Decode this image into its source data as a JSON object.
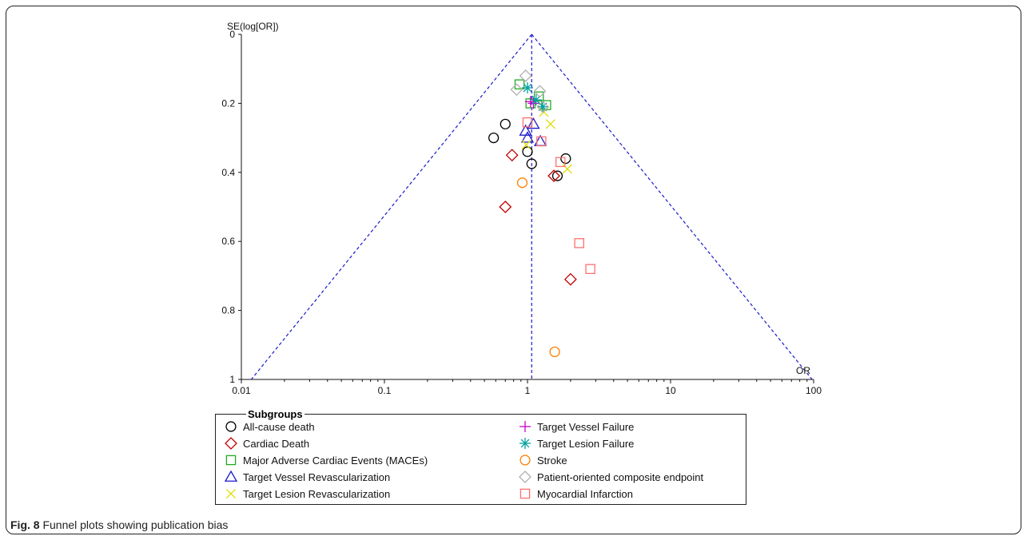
{
  "caption": {
    "label": "Fig. 8",
    "text": " Funnel plots showing publication bias"
  },
  "chart_data": {
    "type": "scatter",
    "title": "",
    "xlabel": "OR",
    "ylabel": "SE(log[OR])",
    "x_scale": "log",
    "xlim": [
      0.01,
      100
    ],
    "ylim": [
      0,
      1
    ],
    "y_inverted": true,
    "x_ticks": [
      0.01,
      0.1,
      1,
      10,
      100
    ],
    "x_tick_labels": [
      "0.01",
      "0.1",
      "1",
      "10",
      "100"
    ],
    "y_ticks": [
      0,
      0.2,
      0.4,
      0.6,
      0.8,
      1
    ],
    "y_tick_labels": [
      "0",
      "0.2",
      "0.4",
      "0.6",
      "0.8",
      "1"
    ],
    "pooled_or": 1.07,
    "funnel": {
      "style": "dashed",
      "color": "#1a1acc"
    },
    "legend": {
      "title": "Subgroups",
      "placement": "bottom"
    },
    "series": [
      {
        "name": "All-cause death",
        "marker": "circle",
        "color": "#000000",
        "points": [
          [
            0.58,
            0.3
          ],
          [
            0.7,
            0.26
          ],
          [
            1.0,
            0.34
          ],
          [
            1.07,
            0.375
          ],
          [
            1.85,
            0.36
          ],
          [
            1.62,
            0.41
          ]
        ]
      },
      {
        "name": "Cardiac Death",
        "marker": "diamond",
        "color": "#c00000",
        "points": [
          [
            0.78,
            0.35
          ],
          [
            0.7,
            0.5
          ],
          [
            1.53,
            0.41
          ],
          [
            2.0,
            0.71
          ]
        ]
      },
      {
        "name": "Major Adverse Cardiac Events (MACEs)",
        "marker": "square",
        "color": "#22aa22",
        "points": [
          [
            0.88,
            0.145
          ],
          [
            1.2,
            0.18
          ],
          [
            1.35,
            0.205
          ],
          [
            1.05,
            0.2
          ]
        ]
      },
      {
        "name": "Target Vessel Revascularization",
        "marker": "triangle",
        "color": "#1a1acc",
        "points": [
          [
            0.97,
            0.28
          ],
          [
            1.1,
            0.26
          ],
          [
            1.23,
            0.31
          ],
          [
            1.0,
            0.3
          ]
        ]
      },
      {
        "name": "Target Lesion Revascularization",
        "marker": "x",
        "color": "#dddd00",
        "points": [
          [
            1.45,
            0.26
          ],
          [
            1.9,
            0.39
          ],
          [
            0.98,
            0.32
          ],
          [
            1.3,
            0.225
          ]
        ]
      },
      {
        "name": "Target Vessel Failure",
        "marker": "plus",
        "color": "#cc00cc",
        "points": [
          [
            1.05,
            0.195
          ],
          [
            1.1,
            0.2
          ]
        ]
      },
      {
        "name": "Target Lesion Failure",
        "marker": "asterisk",
        "color": "#00a0a0",
        "points": [
          [
            1.0,
            0.155
          ],
          [
            1.28,
            0.21
          ],
          [
            1.15,
            0.19
          ]
        ]
      },
      {
        "name": "Stroke",
        "marker": "circle",
        "color": "#ff8000",
        "points": [
          [
            0.92,
            0.43
          ],
          [
            1.55,
            0.92
          ]
        ]
      },
      {
        "name": "Patient-oriented composite endpoint",
        "marker": "diamond",
        "color": "#b0b0b0",
        "points": [
          [
            0.97,
            0.12
          ],
          [
            0.84,
            0.16
          ],
          [
            1.22,
            0.165
          ],
          [
            1.28,
            0.21
          ]
        ]
      },
      {
        "name": "Myocardial Infarction",
        "marker": "square",
        "color": "#ff7070",
        "points": [
          [
            1.0,
            0.255
          ],
          [
            1.25,
            0.31
          ],
          [
            1.7,
            0.37
          ],
          [
            2.3,
            0.605
          ],
          [
            2.75,
            0.68
          ]
        ]
      }
    ]
  }
}
